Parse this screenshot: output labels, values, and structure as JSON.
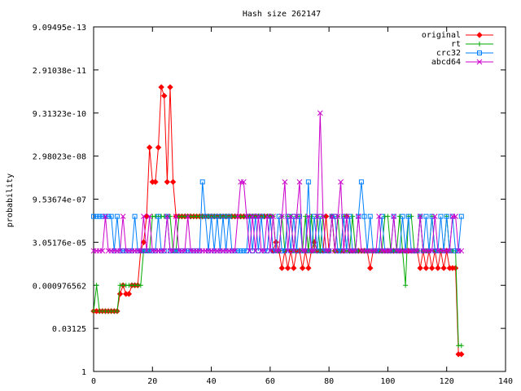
{
  "chart_data": {
    "type": "line",
    "title": "Hash size 262147",
    "xlabel": "",
    "ylabel": "probability",
    "y_scale": "log2",
    "xlim": [
      0,
      140
    ],
    "ylim_log2": [
      -40,
      0
    ],
    "x_ticks": [
      0,
      20,
      40,
      60,
      80,
      100,
      120,
      140
    ],
    "x_tick_labels": [
      "0",
      "20",
      "40",
      "60",
      "80",
      "100",
      "120",
      "140"
    ],
    "y_ticks_log2": [
      0,
      -5,
      -10,
      -15,
      -20,
      -25,
      -30,
      -35,
      -40
    ],
    "y_tick_labels": [
      "1",
      "0.03125",
      "0.000976562",
      "3.05176e-05",
      "9.53674e-07",
      "2.98023e-08",
      "9.31323e-10",
      "2.91038e-11",
      "9.09495e-13"
    ],
    "legend_position": "top-right",
    "series": [
      {
        "name": "original",
        "color": "#ff0000",
        "marker": "diamond",
        "y_log2": [
          -7,
          -7,
          -7,
          -7,
          -7,
          -7,
          -7,
          -7,
          -7,
          -9,
          -10,
          -9,
          -9,
          -10,
          -10,
          -10,
          -14,
          -15,
          -18,
          -26,
          -22,
          -22,
          -26,
          -33,
          -32,
          -22,
          -33,
          -22,
          -18,
          -18,
          -18,
          -18,
          -18,
          -18,
          -18,
          -18,
          -18,
          -18,
          -18,
          -18,
          -18,
          -18,
          -18,
          -18,
          -18,
          -18,
          -18,
          -18,
          -18,
          -18,
          -18,
          -18,
          -18,
          -18,
          -18,
          -18,
          -18,
          -18,
          -18,
          -18,
          -18,
          -14,
          -15,
          -14,
          -12,
          -14,
          -12,
          -14,
          -12,
          -14,
          -14,
          -12,
          -14,
          -12,
          -14,
          -15,
          -14,
          -14,
          -14,
          -18,
          -14,
          -18,
          -14,
          -14,
          -14,
          -14,
          -18,
          -14,
          -14,
          -14,
          -14,
          -14,
          -14,
          -14,
          -12,
          -14,
          -14,
          -14,
          -14,
          -14,
          -14,
          -14,
          -14,
          -14,
          -14,
          -14,
          -14,
          -14,
          -14,
          -14,
          -14,
          -12,
          -14,
          -12,
          -14,
          -12,
          -14,
          -12,
          -14,
          -12,
          -14,
          -12,
          -12,
          -12,
          -2,
          -2
        ]
      },
      {
        "name": "rt",
        "color": "#00aa00",
        "marker": "plus",
        "y_log2": [
          -7,
          -10,
          -7,
          -7,
          -7,
          -7,
          -7,
          -7,
          -7,
          -10,
          -10,
          -10,
          -10,
          -10,
          -10,
          -10,
          -10,
          -14,
          -14,
          -14,
          -18,
          -18,
          -18,
          -18,
          -18,
          -18,
          -18,
          -14,
          -14,
          -18,
          -18,
          -18,
          -18,
          -18,
          -18,
          -18,
          -18,
          -18,
          -18,
          -18,
          -18,
          -18,
          -18,
          -18,
          -18,
          -18,
          -18,
          -18,
          -18,
          -18,
          -18,
          -18,
          -18,
          -18,
          -18,
          -18,
          -18,
          -18,
          -18,
          -18,
          -18,
          -18,
          -14,
          -14,
          -18,
          -14,
          -18,
          -18,
          -14,
          -18,
          -18,
          -14,
          -18,
          -14,
          -18,
          -14,
          -18,
          -14,
          -18,
          -14,
          -14,
          -18,
          -14,
          -18,
          -14,
          -18,
          -14,
          -14,
          -18,
          -14,
          -14,
          -14,
          -14,
          -14,
          -14,
          -14,
          -14,
          -14,
          -14,
          -18,
          -18,
          -14,
          -14,
          -14,
          -18,
          -14,
          -10,
          -18,
          -18,
          -14,
          -14,
          -18,
          -14,
          -14,
          -14,
          -18,
          -14,
          -14,
          -14,
          -14,
          -18,
          -14,
          -14,
          -14,
          -3,
          -3
        ]
      },
      {
        "name": "crc32",
        "color": "#0080ff",
        "marker": "square",
        "y_log2": [
          -18,
          -18,
          -18,
          -18,
          -18,
          -18,
          -18,
          -14,
          -18,
          -14,
          -14,
          -14,
          -14,
          -14,
          -18,
          -14,
          -14,
          -14,
          -14,
          -14,
          -14,
          -14,
          -18,
          -14,
          -14,
          -18,
          -14,
          -14,
          -14,
          -14,
          -14,
          -14,
          -14,
          -14,
          -14,
          -14,
          -14,
          -22,
          -18,
          -14,
          -18,
          -14,
          -18,
          -14,
          -18,
          -14,
          -18,
          -14,
          -14,
          -14,
          -14,
          -14,
          -14,
          -18,
          -14,
          -18,
          -14,
          -18,
          -14,
          -14,
          -18,
          -14,
          -14,
          -18,
          -14,
          -14,
          -18,
          -14,
          -18,
          -14,
          -18,
          -14,
          -14,
          -22,
          -14,
          -18,
          -14,
          -18,
          -14,
          -14,
          -14,
          -18,
          -18,
          -14,
          -14,
          -18,
          -14,
          -18,
          -14,
          -14,
          -18,
          -22,
          -18,
          -14,
          -18,
          -14,
          -14,
          -14,
          -18,
          -14,
          -14,
          -14,
          -18,
          -14,
          -14,
          -18,
          -14,
          -18,
          -14,
          -14,
          -14,
          -18,
          -14,
          -18,
          -14,
          -18,
          -14,
          -14,
          -18,
          -14,
          -18,
          -14,
          -18,
          -14,
          -14,
          -18
        ]
      },
      {
        "name": "abcd64",
        "color": "#cc00cc",
        "marker": "cross",
        "y_log2": [
          -14,
          -14,
          -14,
          -14,
          -18,
          -14,
          -14,
          -14,
          -14,
          -14,
          -18,
          -14,
          -14,
          -14,
          -14,
          -14,
          -14,
          -18,
          -14,
          -18,
          -14,
          -14,
          -14,
          -14,
          -14,
          -18,
          -14,
          -14,
          -18,
          -14,
          -14,
          -14,
          -18,
          -14,
          -14,
          -14,
          -14,
          -14,
          -14,
          -14,
          -14,
          -14,
          -14,
          -14,
          -14,
          -14,
          -14,
          -14,
          -14,
          -18,
          -22,
          -22,
          -18,
          -14,
          -18,
          -14,
          -18,
          -14,
          -14,
          -18,
          -14,
          -18,
          -14,
          -14,
          -18,
          -22,
          -14,
          -18,
          -14,
          -18,
          -22,
          -14,
          -14,
          -18,
          -14,
          -14,
          -18,
          -30,
          -18,
          -14,
          -14,
          -18,
          -14,
          -18,
          -22,
          -14,
          -18,
          -14,
          -14,
          -14,
          -18,
          -14,
          -14,
          -14,
          -14,
          -14,
          -14,
          -18,
          -14,
          -14,
          -14,
          -14,
          -18,
          -14,
          -14,
          -14,
          -14,
          -14,
          -14,
          -14,
          -14,
          -18,
          -14,
          -14,
          -14,
          -14,
          -18,
          -14,
          -14,
          -14,
          -14,
          -14,
          -18,
          -18,
          -14,
          -14
        ]
      }
    ]
  }
}
